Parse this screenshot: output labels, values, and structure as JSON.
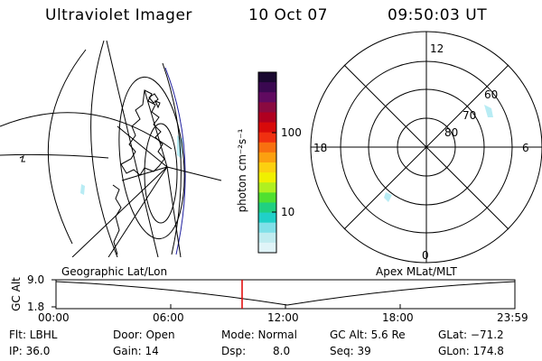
{
  "header": {
    "title": "Ultraviolet Imager",
    "date": "10 Oct 07",
    "time": "09:50:03 UT"
  },
  "colorbar": {
    "unit_label": "photon cm⁻²s⁻¹",
    "ticks": [
      "100",
      "10"
    ],
    "colors": [
      "#1a0830",
      "#3a0850",
      "#600a60",
      "#8a0a40",
      "#b00020",
      "#d80a0a",
      "#f03010",
      "#f87010",
      "#fca010",
      "#fcd010",
      "#f0f000",
      "#b0f020",
      "#50e030",
      "#20d080",
      "#20d0c8",
      "#80e0e8",
      "#c0ecf0",
      "#e0f4f8"
    ]
  },
  "polar_plot": {
    "hour_labels": [
      "12",
      "18",
      "6",
      "0"
    ],
    "lat_labels": [
      "60",
      "70",
      "80"
    ]
  },
  "timeline": {
    "left_title": "Geographic Lat/Lon",
    "right_title": "Apex MLat/MLT",
    "ylabel": "GC Alt",
    "ytick_top": "9.0",
    "ytick_bottom": "1.8",
    "x_ticks": [
      "00:00",
      "06:00",
      "12:00",
      "18:00",
      "23:59"
    ],
    "marker_color": "#e00000"
  },
  "status": {
    "row1": {
      "filter": "Flt: LBHL",
      "door": "Door: Open",
      "mode": "Mode: Normal",
      "gc_alt": "GC Alt: 5.6 Re",
      "glat": "GLat: −71.2"
    },
    "row2": {
      "ip": "IP: 36.0",
      "gain": "Gain: 14",
      "dsp_label": "Dsp:",
      "dsp_value": "8.0",
      "seq": "Seq: 39",
      "glon": "GLon: 174.8"
    }
  },
  "colors": {
    "aurora": "#b8ecf4",
    "overlay": "#2020a0"
  }
}
